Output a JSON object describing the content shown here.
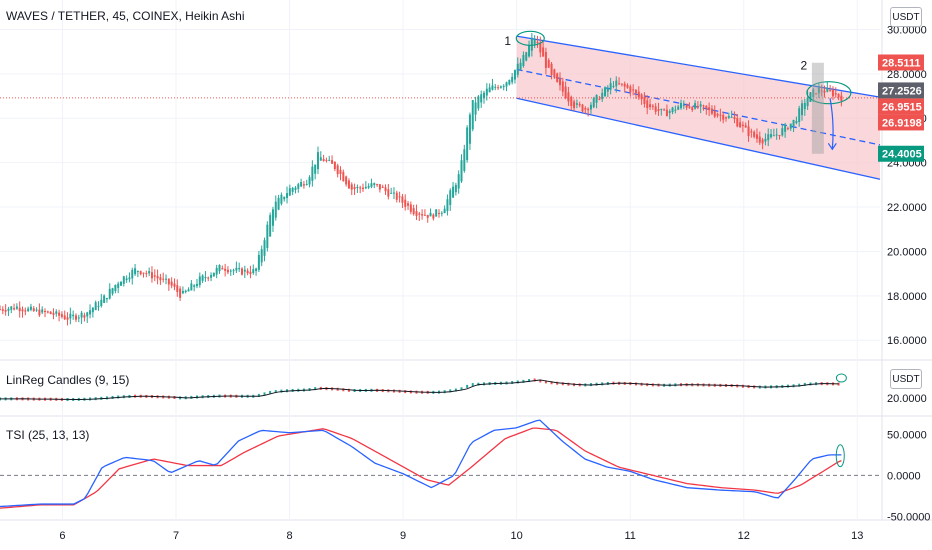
{
  "header": {
    "symbol_title": "WAVES / TETHER, 45, COINEX, Heikin Ashi",
    "currency_button": "USDT"
  },
  "colors": {
    "up": "#26a69a",
    "down": "#ef5350",
    "channel_line": "#2962ff",
    "channel_fill": "#f7c6cc",
    "price_line": "#ef5350",
    "tsi_line": "#2962ff",
    "tsi_signal": "#f23645",
    "grid": "#f0f3fa",
    "axis_text": "#131722"
  },
  "chart_data": [
    {
      "type": "candlestick",
      "title": "WAVES / TETHER, 45, COINEX, Heikin Ashi",
      "y_ticks": [
        "16.0000",
        "18.0000",
        "20.0000",
        "22.0000",
        "24.0000",
        "26.0000",
        "28.0000",
        "30.0000"
      ],
      "ylim": [
        15.2,
        30.2
      ],
      "x_ticks": [
        "6",
        "7",
        "8",
        "9",
        "10",
        "11",
        "12",
        "13"
      ],
      "xlim": [
        5.45,
        13.2
      ],
      "price_labels": [
        {
          "value": "28.5111",
          "price": 28.5111,
          "color": "#ef5350"
        },
        {
          "value": "27.2526",
          "price": 27.2526,
          "color": "#5d606b"
        },
        {
          "value": "26.9515",
          "price": 26.9515,
          "color": "#ef5350"
        },
        {
          "value": "26.9198",
          "price": 26.9198,
          "color": "#ef5350"
        },
        {
          "value": "24.4005",
          "price": 24.4005,
          "color": "#089981"
        }
      ],
      "current_price": 26.9198,
      "channel": {
        "upper": [
          [
            10.0,
            29.7
          ],
          [
            13.2,
            26.95
          ]
        ],
        "mid": [
          [
            10.0,
            28.2
          ],
          [
            13.2,
            24.8
          ]
        ],
        "lower": [
          [
            10.0,
            26.9
          ],
          [
            13.2,
            23.25
          ]
        ]
      },
      "annotations": [
        "1",
        "2"
      ],
      "anchors": [
        [
          5.45,
          17.4
        ],
        [
          5.6,
          17.5
        ],
        [
          5.75,
          17.3
        ],
        [
          5.9,
          17.2
        ],
        [
          6.05,
          17.0
        ],
        [
          6.2,
          17.2
        ],
        [
          6.35,
          17.8
        ],
        [
          6.5,
          18.7
        ],
        [
          6.65,
          19.2
        ],
        [
          6.8,
          18.9
        ],
        [
          6.95,
          18.5
        ],
        [
          7.05,
          18.0
        ],
        [
          7.2,
          18.7
        ],
        [
          7.4,
          19.3
        ],
        [
          7.55,
          19.1
        ],
        [
          7.7,
          19.1
        ],
        [
          7.85,
          22.0
        ],
        [
          8.0,
          22.8
        ],
        [
          8.15,
          23.2
        ],
        [
          8.25,
          24.3
        ],
        [
          8.4,
          23.8
        ],
        [
          8.55,
          22.8
        ],
        [
          8.75,
          23.0
        ],
        [
          8.95,
          22.4
        ],
        [
          9.1,
          21.8
        ],
        [
          9.25,
          21.6
        ],
        [
          9.35,
          21.9
        ],
        [
          9.5,
          23.5
        ],
        [
          9.6,
          26.6
        ],
        [
          9.75,
          27.3
        ],
        [
          9.9,
          27.6
        ],
        [
          10.05,
          28.6
        ],
        [
          10.15,
          29.7
        ],
        [
          10.3,
          27.9
        ],
        [
          10.5,
          26.6
        ],
        [
          10.6,
          26.4
        ],
        [
          10.75,
          27.1
        ],
        [
          10.85,
          27.6
        ],
        [
          11.0,
          27.3
        ],
        [
          11.15,
          26.6
        ],
        [
          11.3,
          26.2
        ],
        [
          11.45,
          26.6
        ],
        [
          11.6,
          26.5
        ],
        [
          11.75,
          26.2
        ],
        [
          11.9,
          26.0
        ],
        [
          12.05,
          25.3
        ],
        [
          12.15,
          25.0
        ],
        [
          12.3,
          25.3
        ],
        [
          12.45,
          25.9
        ],
        [
          12.55,
          26.9
        ],
        [
          12.65,
          27.3
        ],
        [
          12.75,
          27.2
        ],
        [
          12.85,
          26.95
        ]
      ]
    },
    {
      "type": "line",
      "title": "LinReg Candles (9, 15)",
      "y_ticks": [
        "20.0000"
      ],
      "series": []
    },
    {
      "type": "line",
      "title": "TSI (25, 13, 13)",
      "y_ticks": [
        "50.0000",
        "0.0000",
        "-50.0000"
      ],
      "ylim": [
        -52,
        70
      ],
      "series_anchors": {
        "tsi": [
          [
            5.45,
            -38
          ],
          [
            5.8,
            -35
          ],
          [
            6.1,
            -35
          ],
          [
            6.2,
            -28
          ],
          [
            6.35,
            10
          ],
          [
            6.55,
            22
          ],
          [
            6.8,
            18
          ],
          [
            6.95,
            3
          ],
          [
            7.2,
            18
          ],
          [
            7.35,
            12
          ],
          [
            7.55,
            42
          ],
          [
            7.75,
            55
          ],
          [
            8.0,
            52
          ],
          [
            8.3,
            55
          ],
          [
            8.55,
            35
          ],
          [
            8.75,
            15
          ],
          [
            9.0,
            2
          ],
          [
            9.25,
            -15
          ],
          [
            9.45,
            0
          ],
          [
            9.6,
            40
          ],
          [
            9.8,
            55
          ],
          [
            10.0,
            58
          ],
          [
            10.2,
            68
          ],
          [
            10.4,
            42
          ],
          [
            10.6,
            20
          ],
          [
            10.8,
            10
          ],
          [
            11.0,
            5
          ],
          [
            11.2,
            -5
          ],
          [
            11.5,
            -15
          ],
          [
            11.8,
            -18
          ],
          [
            12.1,
            -20
          ],
          [
            12.3,
            -28
          ],
          [
            12.45,
            -5
          ],
          [
            12.6,
            20
          ],
          [
            12.75,
            25
          ],
          [
            12.85,
            25
          ]
        ],
        "signal": [
          [
            5.45,
            -40
          ],
          [
            5.8,
            -36
          ],
          [
            6.1,
            -36
          ],
          [
            6.3,
            -20
          ],
          [
            6.5,
            8
          ],
          [
            6.8,
            20
          ],
          [
            7.1,
            12
          ],
          [
            7.4,
            12
          ],
          [
            7.6,
            28
          ],
          [
            7.9,
            48
          ],
          [
            8.3,
            57
          ],
          [
            8.55,
            45
          ],
          [
            8.85,
            22
          ],
          [
            9.2,
            -5
          ],
          [
            9.4,
            -12
          ],
          [
            9.6,
            10
          ],
          [
            9.9,
            45
          ],
          [
            10.15,
            58
          ],
          [
            10.35,
            55
          ],
          [
            10.6,
            30
          ],
          [
            10.9,
            10
          ],
          [
            11.2,
            0
          ],
          [
            11.5,
            -10
          ],
          [
            11.8,
            -15
          ],
          [
            12.1,
            -18
          ],
          [
            12.3,
            -22
          ],
          [
            12.5,
            -12
          ],
          [
            12.7,
            5
          ],
          [
            12.85,
            18
          ]
        ]
      }
    }
  ]
}
